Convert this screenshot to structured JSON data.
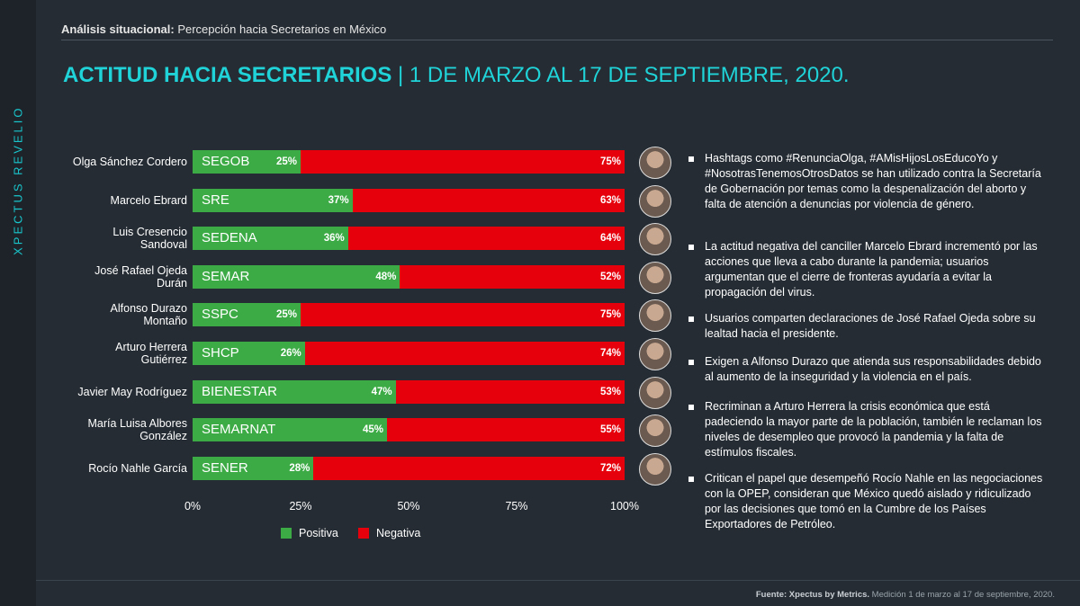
{
  "brand": "XPECTUS REVELIO",
  "header": {
    "label": "Análisis situacional:",
    "text": "Percepción hacia Secretarios en México"
  },
  "chart_data": {
    "type": "stacked-bar-horizontal",
    "title": "ACTITUD HACIA SECRETARIOS",
    "subtitle": "| 1 DE MARZO AL 17 DE SEPTIEMBRE, 2020.",
    "categories": [
      "Olga Sánchez Cordero",
      "Marcelo Ebrard",
      "Luis Cresencio Sandoval",
      "José Rafael Ojeda Durán",
      "Alfonso Durazo Montaño",
      "Arturo Herrera Gutiérrez",
      "Javier May Rodríguez",
      "María Luisa Albores González",
      "Rocío Nahle García"
    ],
    "agencies": [
      "SEGOB",
      "SRE",
      "SEDENA",
      "SEMAR",
      "SSPC",
      "SHCP",
      "BIENESTAR",
      "SEMARNAT",
      "SENER"
    ],
    "series": [
      {
        "name": "Positiva",
        "color": "#3cab45",
        "values": [
          25,
          37,
          36,
          48,
          25,
          26,
          47,
          45,
          28
        ],
        "value_labels": [
          "25%",
          "37%",
          "36%",
          "48%",
          "25%",
          "26%",
          "47%",
          "45%",
          "28%"
        ]
      },
      {
        "name": "Negativa",
        "color": "#e5000c",
        "values": [
          75,
          63,
          64,
          52,
          75,
          74,
          53,
          55,
          72
        ],
        "value_labels": [
          "75%",
          "63%",
          "64%",
          "52%",
          "75%",
          "74%",
          "53%",
          "55%",
          "72%"
        ]
      }
    ],
    "xlim": [
      0,
      100
    ],
    "xticks": [
      {
        "value": 0,
        "label": "0%"
      },
      {
        "value": 25,
        "label": "25%"
      },
      {
        "value": 50,
        "label": "50%"
      },
      {
        "value": 75,
        "label": "75%"
      },
      {
        "value": 100,
        "label": "100%"
      }
    ]
  },
  "notes": [
    "Hashtags como #RenunciaOlga, #AMisHijosLosEducoYo y #NosotrasTenemosOtrosDatos se han utilizado contra la Secretaría de Gobernación por temas como la despenalización del aborto y falta de atención a denuncias por violencia de género.",
    "La actitud negativa del canciller Marcelo Ebrard incrementó por las acciones que lleva a cabo durante la pandemia; usuarios argumentan que el cierre de fronteras ayudaría a evitar la propagación del virus.",
    "Usuarios comparten declaraciones de José Rafael Ojeda sobre su lealtad hacia el presidente.",
    "Exigen a Alfonso Durazo que atienda sus responsabilidades debido al aumento de la inseguridad y la violencia en el país.",
    "Recriminan a Arturo Herrera la crisis económica que está padeciendo la mayor parte de la población, también le reclaman los niveles de desempleo que provocó la pandemia y la falta de estímulos fiscales.",
    "Critican el papel que desempeñó Rocío Nahle en las negociaciones con la OPEP, consideran que México quedó aislado y ridiculizado por las decisiones que tomó en la Cumbre de los Países Exportadores de Petróleo."
  ],
  "footer": {
    "source": "Fuente: Xpectus by Metrics.",
    "text": "Medición 1 de marzo al 17 de septiembre, 2020."
  }
}
